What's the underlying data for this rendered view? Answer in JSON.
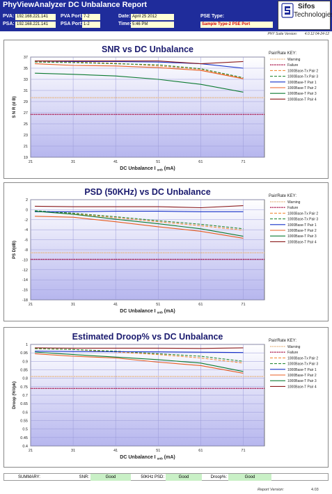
{
  "header": {
    "title": "PhyViewAnalyzer DC Unbalance Report",
    "pva_label": "PVA:",
    "pva_value": "192.168.221.141",
    "pva_port_label": "PVA Port:",
    "pva_port_value": "7-2",
    "psa_label": "PSA:",
    "psa_value": "192.168.221.141",
    "psa_port_label": "PSA Port:",
    "psa_port_value": "1-2",
    "date_label": "Date:",
    "date_value": "April 25 2012",
    "time_label": "Time:",
    "time_value": "5:46 PM",
    "pse_type_label": "PSE Type:",
    "pse_type_value": "Sample Type-2 PSE Port",
    "suite_version_label": "PHY Suite Version:",
    "suite_version_value": "4.0.12 04-24-12"
  },
  "logo": {
    "name": "Sifos",
    "subtitle": "Technologies",
    "icon": "sifos-logo-icon"
  },
  "colors": {
    "header_bg": "#1f2c9b",
    "warning": "#e6b98a",
    "failure": "#a3003a",
    "plot_bg_top": "#ffffff",
    "plot_bg_bottom": "#b6b6ee",
    "grid": "#9a9ad8"
  },
  "chart_data": [
    {
      "type": "line",
      "title": "SNR vs DC Unbalance",
      "xlabel": "DC Unbalance I",
      "xlabel_sub": "unb",
      "xlabel_unit": "(mA)",
      "ylabel": "S N R (d B)",
      "xlim": [
        21,
        76
      ],
      "xticks": [
        21,
        31,
        41,
        51,
        61,
        71
      ],
      "ylim": [
        19,
        37
      ],
      "yticks": [
        19,
        21,
        23,
        25,
        27,
        29,
        31,
        33,
        35,
        37
      ],
      "grid": true,
      "legend_title": "Pair/Rate KEY:",
      "legend_position": "right",
      "warning_level": 29.7,
      "failure_level": 26.7,
      "x": [
        22,
        31,
        41,
        51,
        61,
        71
      ],
      "series": [
        {
          "name": "1000Base-Tx Pair 2",
          "color": "#f28c3c",
          "dash": true,
          "values": [
            36.2,
            36.1,
            35.9,
            35.4,
            34.8,
            33.2
          ]
        },
        {
          "name": "1000Base-Tx Pair 3",
          "color": "#2e8b3a",
          "dash": true,
          "values": [
            36.1,
            36.0,
            35.8,
            35.6,
            34.9,
            33.3
          ]
        },
        {
          "name": "1000Base-T Pair 1",
          "color": "#1530c8",
          "dash": false,
          "values": [
            36.3,
            36.2,
            36.2,
            36.1,
            35.8,
            35.0
          ]
        },
        {
          "name": "1000Base-T Pair 2",
          "color": "#e85d20",
          "dash": false,
          "values": [
            35.8,
            35.5,
            35.4,
            35.1,
            34.6,
            33.1
          ]
        },
        {
          "name": "1000Base-T Pair 3",
          "color": "#0c7a30",
          "dash": false,
          "values": [
            34.1,
            33.9,
            33.6,
            33.0,
            32.1,
            30.7
          ]
        },
        {
          "name": "1000Base-T Pair 4",
          "color": "#8b1a1a",
          "dash": false,
          "values": [
            36.3,
            36.3,
            36.3,
            36.3,
            35.8,
            36.2
          ]
        }
      ]
    },
    {
      "type": "line",
      "title": "PSD (50KHz) vs DC Unbalance",
      "xlabel": "DC Unbalance I",
      "xlabel_sub": "unb",
      "xlabel_unit": "(mA)",
      "ylabel": "PS D(dB)",
      "xlim": [
        21,
        76
      ],
      "xticks": [
        21,
        31,
        41,
        51,
        61,
        71
      ],
      "ylim": [
        -18,
        2
      ],
      "yticks": [
        -18,
        -16,
        -14,
        -12,
        -10,
        -8,
        -6,
        -4,
        -2,
        0,
        2
      ],
      "grid": true,
      "legend_title": "Pair/Rate KEY:",
      "legend_position": "right",
      "warning_level": -8.6,
      "failure_level": -9.9,
      "x": [
        22,
        31,
        41,
        51,
        61,
        71
      ],
      "series": [
        {
          "name": "1000Base-Tx Pair 2",
          "color": "#f28c3c",
          "dash": true,
          "values": [
            -0.3,
            -0.8,
            -1.6,
            -2.4,
            -3.2,
            -4.1
          ]
        },
        {
          "name": "1000Base-Tx Pair 3",
          "color": "#2e8b3a",
          "dash": true,
          "values": [
            -0.2,
            -0.7,
            -1.4,
            -2.2,
            -2.9,
            -3.8
          ]
        },
        {
          "name": "1000Base-T Pair 1",
          "color": "#1530c8",
          "dash": false,
          "values": [
            -0.4,
            -0.4,
            -0.3,
            -0.3,
            -0.4,
            -0.4
          ]
        },
        {
          "name": "1000Base-T Pair 2",
          "color": "#e85d20",
          "dash": false,
          "values": [
            -1.3,
            -1.5,
            -2.4,
            -3.4,
            -4.3,
            -5.7
          ]
        },
        {
          "name": "1000Base-T Pair 3",
          "color": "#0c7a30",
          "dash": false,
          "values": [
            -0.3,
            -0.9,
            -1.9,
            -2.8,
            -3.8,
            -5.3
          ]
        },
        {
          "name": "1000Base-T Pair 4",
          "color": "#8b1a1a",
          "dash": false,
          "values": [
            0.7,
            0.6,
            0.6,
            0.6,
            0.4,
            0.8
          ]
        }
      ]
    },
    {
      "type": "line",
      "title": "Estimated Droop% vs DC Unbalance",
      "xlabel": "DC Unbalance I",
      "xlabel_sub": "unb",
      "xlabel_unit": "(mA)",
      "ylabel": "Droop (%Vpk)",
      "xlim": [
        21,
        76
      ],
      "xticks": [
        21,
        31,
        41,
        51,
        61,
        71
      ],
      "ylim": [
        0.4,
        1.0
      ],
      "yticks": [
        0.4,
        0.45,
        0.5,
        0.55,
        0.6,
        0.65,
        0.7,
        0.75,
        0.8,
        0.85,
        0.9,
        0.95,
        1
      ],
      "ytick_labels": [
        "0.4",
        "0.45",
        "0.5",
        "0.55",
        "0.6",
        "0.65",
        "0.7",
        "0.75",
        "0.8",
        "0.85",
        "0.9",
        "0.95",
        "1"
      ],
      "grid": true,
      "legend_title": "Pair/Rate KEY:",
      "legend_position": "right",
      "warning_level": 0.81,
      "failure_level": 0.74,
      "x": [
        22,
        31,
        41,
        51,
        61,
        71
      ],
      "series": [
        {
          "name": "1000Base-Tx Pair 2",
          "color": "#f28c3c",
          "dash": true,
          "values": [
            0.975,
            0.97,
            0.955,
            0.94,
            0.92,
            0.89
          ]
        },
        {
          "name": "1000Base-Tx Pair 3",
          "color": "#2e8b3a",
          "dash": true,
          "values": [
            0.975,
            0.97,
            0.96,
            0.945,
            0.93,
            0.9
          ]
        },
        {
          "name": "1000Base-T Pair 1",
          "color": "#1530c8",
          "dash": false,
          "values": [
            0.96,
            0.958,
            0.957,
            0.956,
            0.954,
            0.952
          ]
        },
        {
          "name": "1000Base-T Pair 2",
          "color": "#e85d20",
          "dash": false,
          "values": [
            0.945,
            0.93,
            0.92,
            0.895,
            0.875,
            0.83
          ]
        },
        {
          "name": "1000Base-T Pair 3",
          "color": "#0c7a30",
          "dash": false,
          "values": [
            0.955,
            0.94,
            0.925,
            0.91,
            0.89,
            0.84
          ]
        },
        {
          "name": "1000Base-T Pair 4",
          "color": "#8b1a1a",
          "dash": false,
          "values": [
            0.98,
            0.978,
            0.978,
            0.978,
            0.976,
            0.98
          ]
        }
      ]
    }
  ],
  "legend_extra": {
    "warning": "Warning",
    "failure": "Failure"
  },
  "summary": {
    "label": "SUMMARY:",
    "snr_label": "SNR:",
    "snr_value": "Good",
    "psd_label": "50KHz PSD:",
    "psd_value": "Good",
    "droop_label": "Droop%:",
    "droop_value": "Good"
  },
  "footer": {
    "report_version_label": "Report Version:",
    "report_version_value": "4.03"
  }
}
